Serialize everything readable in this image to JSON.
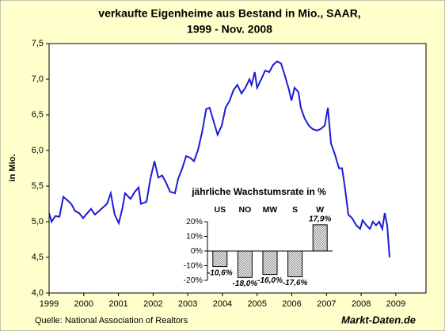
{
  "chart_data": [
    {
      "type": "line",
      "title": "verkaufte Eigenheime aus Bestand in Mio., SAAR,",
      "subtitle": "1999 - Nov. 2008",
      "y_label": "in Mio.",
      "xlim": [
        1999,
        2009.87
      ],
      "xticks": [
        1999,
        2000,
        2001,
        2002,
        2003,
        2004,
        2005,
        2006,
        2007,
        2008,
        2009
      ],
      "ylim": [
        4.0,
        7.5
      ],
      "yticks": [
        {
          "value": 4.0,
          "label": "4,0"
        },
        {
          "value": 4.5,
          "label": "4,5"
        },
        {
          "value": 5.0,
          "label": "5,0"
        },
        {
          "value": 5.5,
          "label": "5,5"
        },
        {
          "value": 6.0,
          "label": "6,0"
        },
        {
          "value": 6.5,
          "label": "6,5"
        },
        {
          "value": 7.0,
          "label": "7,0"
        },
        {
          "value": 7.5,
          "label": "7,5"
        }
      ],
      "grid": false,
      "series": [
        {
          "name": "verkaufte Eigenheime",
          "color": "#1c1cd6",
          "x": [
            1999.0,
            1999.07,
            1999.18,
            1999.3,
            1999.41,
            1999.53,
            1999.64,
            1999.75,
            1999.87,
            1999.98,
            2000.1,
            2000.21,
            2000.32,
            2000.44,
            2000.55,
            2000.67,
            2000.78,
            2000.89,
            2001.01,
            2001.12,
            2001.19,
            2001.35,
            2001.47,
            2001.58,
            2001.65,
            2001.81,
            2001.92,
            2002.04,
            2002.15,
            2002.26,
            2002.37,
            2002.49,
            2002.63,
            2002.72,
            2002.84,
            2002.95,
            2003.06,
            2003.18,
            2003.29,
            2003.41,
            2003.53,
            2003.63,
            2003.75,
            2003.86,
            2003.98,
            2004.09,
            2004.21,
            2004.32,
            2004.43,
            2004.55,
            2004.66,
            2004.78,
            2004.84,
            2004.93,
            2005.0,
            2005.12,
            2005.23,
            2005.35,
            2005.46,
            2005.58,
            2005.69,
            2005.8,
            2005.92,
            2005.99,
            2006.08,
            2006.19,
            2006.26,
            2006.37,
            2006.49,
            2006.6,
            2006.72,
            2006.83,
            2006.95,
            2007.04,
            2007.13,
            2007.24,
            2007.36,
            2007.45,
            2007.54,
            2007.63,
            2007.74,
            2007.86,
            2007.97,
            2008.04,
            2008.15,
            2008.25,
            2008.34,
            2008.43,
            2008.52,
            2008.61,
            2008.68,
            2008.75,
            2008.82
          ],
          "values": [
            5.12,
            5.0,
            5.08,
            5.07,
            5.35,
            5.3,
            5.25,
            5.15,
            5.12,
            5.05,
            5.12,
            5.18,
            5.1,
            5.15,
            5.2,
            5.25,
            5.4,
            5.1,
            4.98,
            5.2,
            5.4,
            5.32,
            5.42,
            5.48,
            5.25,
            5.28,
            5.6,
            5.85,
            5.62,
            5.65,
            5.55,
            5.42,
            5.4,
            5.6,
            5.75,
            5.92,
            5.9,
            5.85,
            6.0,
            6.25,
            6.58,
            6.6,
            6.4,
            6.22,
            6.35,
            6.6,
            6.7,
            6.85,
            6.92,
            6.8,
            6.88,
            7.0,
            6.92,
            7.1,
            6.88,
            7.0,
            7.12,
            7.1,
            7.2,
            7.25,
            7.22,
            7.05,
            6.85,
            6.7,
            6.88,
            6.82,
            6.6,
            6.45,
            6.35,
            6.3,
            6.28,
            6.3,
            6.35,
            6.6,
            6.1,
            5.95,
            5.75,
            5.75,
            5.45,
            5.1,
            5.05,
            4.95,
            4.9,
            5.02,
            4.95,
            4.9,
            5.0,
            4.95,
            5.0,
            4.9,
            5.12,
            4.95,
            4.5
          ]
        }
      ]
    },
    {
      "type": "bar",
      "title": "jährliche Wachstumsrate in %",
      "categories": [
        "US",
        "NO",
        "MW",
        "S",
        "W"
      ],
      "values": [
        -10.6,
        -18.0,
        -16.0,
        -17.6,
        17.9
      ],
      "value_labels": [
        "-10,6%",
        "-18,0%",
        "-16,0%",
        "-17,6%",
        "17,9%"
      ],
      "ylim": [
        -20,
        20
      ],
      "yticks": [
        {
          "value": -20,
          "label": "-20%"
        },
        {
          "value": -10,
          "label": "-10%"
        },
        {
          "value": 0,
          "label": "0%"
        },
        {
          "value": 10,
          "label": "10%"
        },
        {
          "value": 20,
          "label": "20%"
        }
      ],
      "color": "#b0b0b0"
    }
  ],
  "source": "Quelle: National Association of Realtors",
  "brand": "Markt-Daten.de"
}
